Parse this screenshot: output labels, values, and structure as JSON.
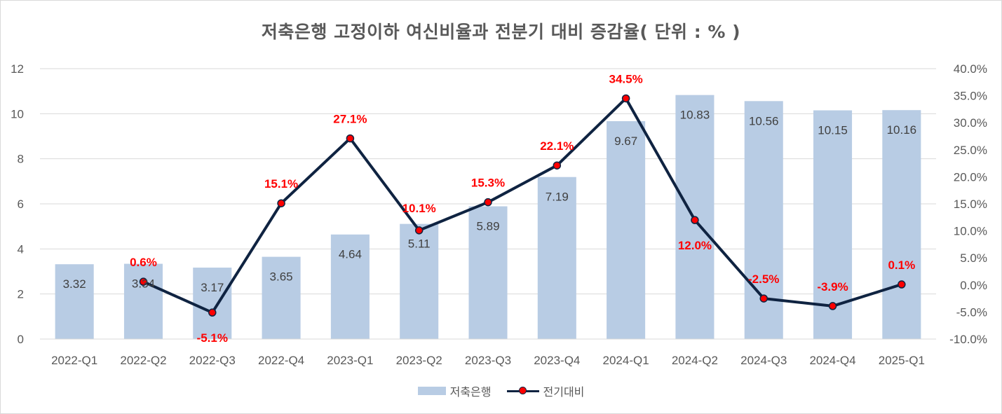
{
  "chart_data": {
    "type": "bar+line",
    "title": "저축은행 고정이하 여신비율과 전분기 대비 증감율( 단위 : % )",
    "categories": [
      "2022-Q1",
      "2022-Q2",
      "2022-Q3",
      "2022-Q4",
      "2023-Q1",
      "2023-Q2",
      "2023-Q3",
      "2023-Q4",
      "2024-Q1",
      "2024-Q2",
      "2024-Q3",
      "2024-Q4",
      "2025-Q1"
    ],
    "series": [
      {
        "name": "저축은행",
        "type": "bar",
        "axis": "left",
        "values": [
          3.32,
          3.34,
          3.17,
          3.65,
          4.64,
          5.11,
          5.89,
          7.19,
          9.67,
          10.83,
          10.56,
          10.15,
          10.16
        ],
        "labels": [
          "3.32",
          "3.34",
          "3.17",
          "3.65",
          "4.64",
          "5.11",
          "5.89",
          "7.19",
          "9.67",
          "10.83",
          "10.56",
          "10.15",
          "10.16"
        ],
        "color": "#b8cce4"
      },
      {
        "name": "전기대비",
        "type": "line",
        "axis": "right",
        "values": [
          null,
          0.6,
          -5.1,
          15.1,
          27.1,
          10.1,
          15.3,
          22.1,
          34.5,
          12.0,
          -2.5,
          -3.9,
          0.1
        ],
        "labels": [
          "",
          "0.6%",
          "-5.1%",
          "15.1%",
          "27.1%",
          "10.1%",
          "15.3%",
          "22.1%",
          "34.5%",
          "12.0%",
          "-2.5%",
          "-3.9%",
          "0.1%"
        ],
        "color": "#0f2341",
        "marker_color": "#ff0000",
        "label_color": "#ff0000"
      }
    ],
    "y_left": {
      "min": 0,
      "max": 12,
      "ticks": [
        "0",
        "2",
        "4",
        "6",
        "8",
        "10",
        "12"
      ]
    },
    "y_right": {
      "min": -10,
      "max": 40,
      "ticks": [
        "-10.0%",
        "-5.0%",
        "0.0%",
        "5.0%",
        "10.0%",
        "15.0%",
        "20.0%",
        "25.0%",
        "30.0%",
        "35.0%",
        "40.0%"
      ]
    },
    "grid": true,
    "legend_position": "bottom"
  }
}
